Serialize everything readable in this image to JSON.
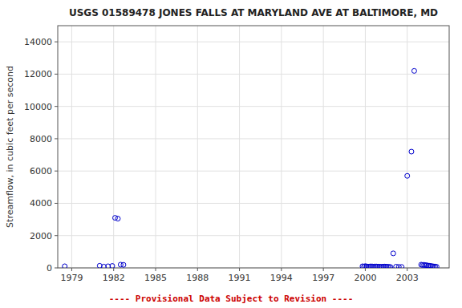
{
  "chart_data": {
    "type": "scatter",
    "title": "USGS 01589478 JONES FALLS AT MARYLAND AVE AT BALTIMORE, MD",
    "ylabel": "Streamflow, in cubic feet per second",
    "annotations": [
      {
        "text": "---- Provisional Data Subject to Revision ----",
        "color": "#cc0000"
      }
    ],
    "color": "#0000cc",
    "marker": "open-circle",
    "grid": true,
    "xlim": [
      1978,
      2006
    ],
    "ylim": [
      0,
      15000
    ],
    "xticks": [
      1979,
      1982,
      1985,
      1988,
      1991,
      1994,
      1997,
      2000,
      2003
    ],
    "yticks": [
      0,
      2000,
      4000,
      6000,
      8000,
      10000,
      12000,
      14000
    ],
    "x": [
      1978.5,
      1981.0,
      1981.3,
      1981.6,
      1981.9,
      1982.1,
      1982.3,
      1982.5,
      1982.7,
      1999.8,
      1999.9,
      2000.0,
      2000.1,
      2000.2,
      2000.3,
      2000.4,
      2000.5,
      2000.6,
      2000.7,
      2000.8,
      2000.9,
      2001.0,
      2001.1,
      2001.2,
      2001.3,
      2001.4,
      2001.5,
      2001.6,
      2001.7,
      2001.8,
      2002.0,
      2002.2,
      2002.4,
      2002.6,
      2003.0,
      2003.3,
      2003.5,
      2004.0,
      2004.1,
      2004.2,
      2004.3,
      2004.4,
      2004.5,
      2004.6,
      2004.7,
      2004.8,
      2004.9,
      2005.0,
      2005.1
    ],
    "values": [
      100,
      130,
      80,
      100,
      120,
      3100,
      3050,
      200,
      190,
      100,
      80,
      110,
      90,
      75,
      80,
      95,
      88,
      70,
      90,
      85,
      80,
      75,
      70,
      65,
      80,
      85,
      75,
      70,
      60,
      55,
      900,
      75,
      65,
      60,
      5700,
      7200,
      12200,
      200,
      180,
      190,
      170,
      160,
      140,
      130,
      120,
      100,
      90,
      80,
      70
    ]
  }
}
